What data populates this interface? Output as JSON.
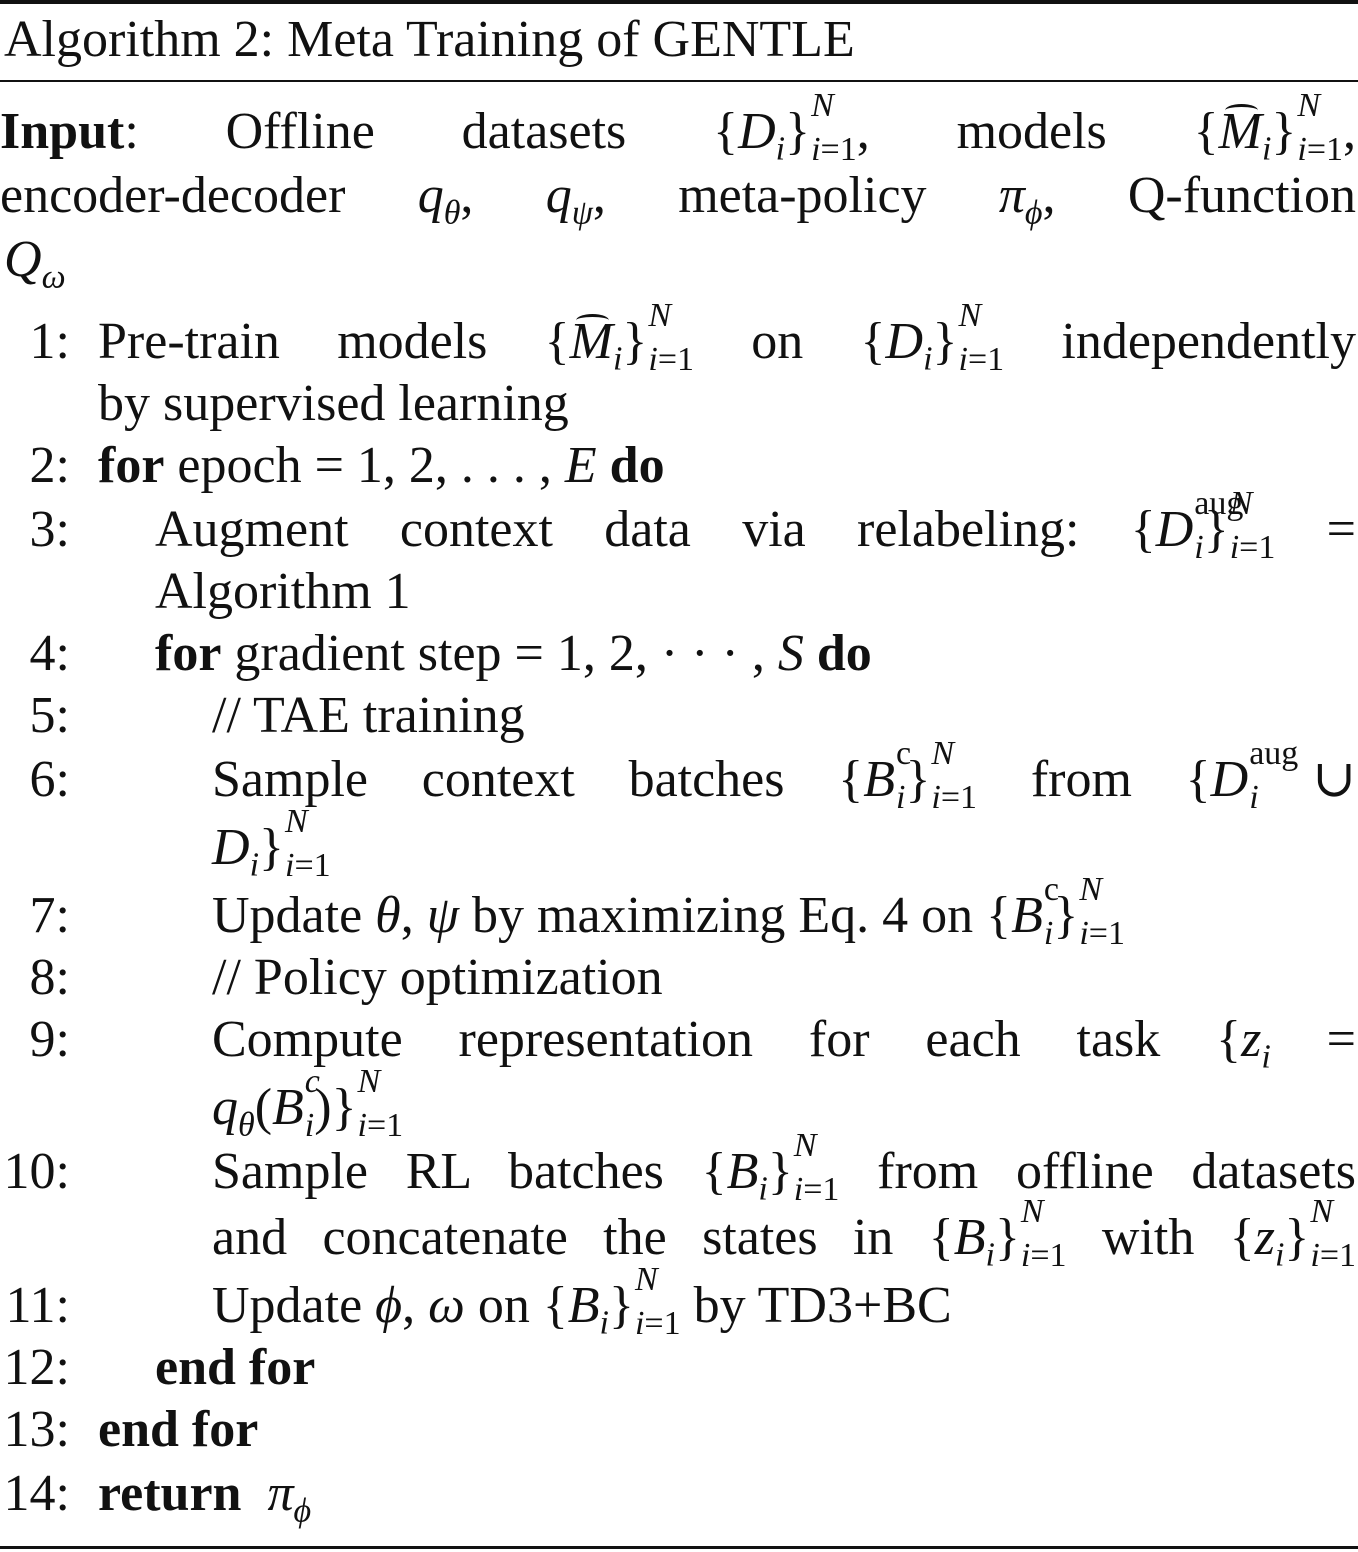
{
  "algorithm": {
    "caption": "Algorithm 2: Meta Training of GENTLE",
    "input_label": "Input",
    "input_lines": [
      ": Offline datasets {Di}i=1N, models {M̂i}i=1N,",
      "encoder-decoder qθ, qψ, meta-policy πϕ, Q-function",
      "Qω"
    ],
    "steps": [
      {
        "no": "1:",
        "lines": [
          "Pre-train models {M̂i}i=1N on {Di}i=1N independently",
          "by supervised learning"
        ]
      },
      {
        "no": "2:",
        "lines": [
          "for epoch = 1, 2, . . . , E do"
        ]
      },
      {
        "no": "3:",
        "lines": [
          "Augment context data via relabeling: {Diaug}i=1N =",
          "Algorithm 1"
        ]
      },
      {
        "no": "4:",
        "lines": [
          "for gradient step = 1, 2, · · · , S do"
        ]
      },
      {
        "no": "5:",
        "lines": [
          "// TAE training"
        ]
      },
      {
        "no": "6:",
        "lines": [
          "Sample context batches {Bic}i=1N from {Diaug ∪",
          "Di}i=1N"
        ]
      },
      {
        "no": "7:",
        "lines": [
          "Update θ, ψ by maximizing Eq. 4 on {Bic}i=1N"
        ]
      },
      {
        "no": "8:",
        "lines": [
          "// Policy optimization"
        ]
      },
      {
        "no": "9:",
        "lines": [
          "Compute representation for each task {zi =",
          "qθ(Bic)}i=1N"
        ]
      },
      {
        "no": "10:",
        "lines": [
          "Sample RL batches {Bi}i=1N from offline datasets",
          "and concatenate the states in {Bi}i=1N with {zi}i=1N"
        ]
      },
      {
        "no": "11:",
        "lines": [
          "Update ϕ, ω on {Bi}i=1N by TD3+BC"
        ]
      },
      {
        "no": "12:",
        "lines": [
          "end for"
        ]
      },
      {
        "no": "13:",
        "lines": [
          "end for"
        ]
      },
      {
        "no": "14:",
        "lines": [
          "return πϕ"
        ]
      }
    ]
  }
}
